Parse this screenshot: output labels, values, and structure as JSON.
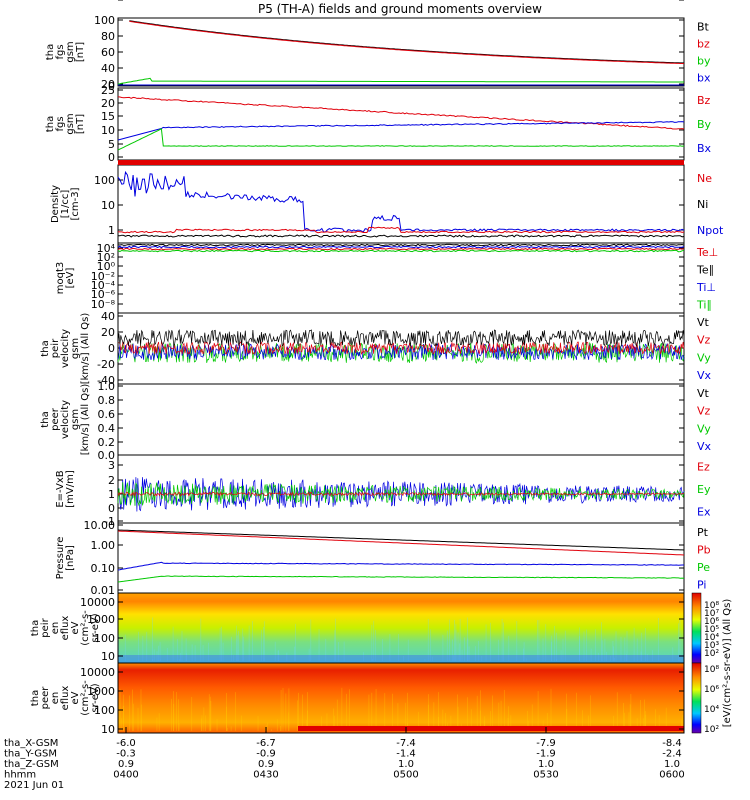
{
  "title": "P5 (TH-A) fields and ground moments overview",
  "colors": {
    "black": "#000000",
    "red": "#e0000b",
    "green": "#00c800",
    "blue": "#0000e0",
    "frame": "#000000"
  },
  "chart_data": [
    {
      "type": "line",
      "id": "fgs",
      "ylabel": [
        "tha",
        "fgs",
        "gsm",
        "[nT]"
      ],
      "yticks": [
        "100",
        "80",
        "60",
        "40",
        "20",
        "0"
      ],
      "ylim": [
        0,
        100
      ],
      "legend": [
        {
          "name": "Bt",
          "color": "black"
        },
        {
          "name": "bz",
          "color": "red"
        },
        {
          "name": "by",
          "color": "green"
        },
        {
          "name": "bx",
          "color": "blue"
        }
      ]
    },
    {
      "type": "line",
      "id": "fgs_dsl",
      "ylabel": [
        "tha",
        "fgs",
        "gsm",
        "[nT]"
      ],
      "yticks": [
        "25",
        "20",
        "15",
        "10",
        "5",
        "0",
        "-5"
      ],
      "ylim": [
        -8,
        25
      ],
      "legend": [
        {
          "name": "Bz",
          "color": "red"
        },
        {
          "name": "By",
          "color": "green"
        },
        {
          "name": "Bx",
          "color": "blue"
        }
      ]
    },
    {
      "type": "line",
      "id": "density",
      "ylabel": [
        "Density",
        "[1/cc]",
        "[cm-3]"
      ],
      "yticks": [
        "100",
        "10",
        "1"
      ],
      "ylim": [
        0.4,
        200
      ],
      "scale": "log",
      "legend": [
        {
          "name": "Ne",
          "color": "red"
        },
        {
          "name": "Ni",
          "color": "black"
        },
        {
          "name": "Npot",
          "color": "blue"
        }
      ]
    },
    {
      "type": "line",
      "id": "temp",
      "ylabel": [
        "moqt3",
        "[eV]"
      ],
      "yticks": [
        "10⁴",
        "10²",
        "10⁰",
        "10⁻²",
        "10⁻⁴",
        "10⁻⁶",
        "10⁻⁸"
      ],
      "ylim": [
        1e-09,
        10000.0
      ],
      "scale": "log",
      "legend": [
        {
          "name": "Te⊥",
          "color": "red"
        },
        {
          "name": "Te∥",
          "color": "black"
        },
        {
          "name": "Ti⊥",
          "color": "blue"
        },
        {
          "name": "Ti∥",
          "color": "green"
        }
      ]
    },
    {
      "type": "line",
      "id": "peir_v",
      "ylabel": [
        "tha",
        "peir",
        "velocity",
        "gsm",
        "[km/s] (All Qs)"
      ],
      "yticks": [
        "40",
        "20",
        "0",
        "-20",
        "-40"
      ],
      "ylim": [
        -40,
        40
      ],
      "legend": [
        {
          "name": "Vt",
          "color": "black"
        },
        {
          "name": "Vz",
          "color": "red"
        },
        {
          "name": "Vy",
          "color": "green"
        },
        {
          "name": "Vx",
          "color": "blue"
        }
      ]
    },
    {
      "type": "line",
      "id": "peer_v",
      "ylabel": [
        "tha",
        "peer",
        "velocity",
        "gsm",
        "[km/s] (All Qs)"
      ],
      "yticks": [
        "1.0",
        "0.8",
        "0.6",
        "0.4",
        "0.2",
        "0.0"
      ],
      "ylim": [
        0,
        1
      ],
      "legend": [
        {
          "name": "Vt",
          "color": "black"
        },
        {
          "name": "Vz",
          "color": "red"
        },
        {
          "name": "Vy",
          "color": "green"
        },
        {
          "name": "Vx",
          "color": "blue"
        }
      ]
    },
    {
      "type": "line",
      "id": "efield",
      "ylabel": [
        "E=-VxB",
        "[mV/m]"
      ],
      "yticks": [
        "3",
        "2",
        "1",
        "0",
        "-1",
        "-2"
      ],
      "ylim": [
        -2,
        3
      ],
      "legend": [
        {
          "name": "Ez",
          "color": "red"
        },
        {
          "name": "Ey",
          "color": "green"
        },
        {
          "name": "Ex",
          "color": "blue"
        }
      ]
    },
    {
      "type": "line",
      "id": "pressure",
      "ylabel": [
        "Pressure",
        "[nPa]"
      ],
      "yticks": [
        "10.00",
        "1.00",
        "0.10",
        "0.01"
      ],
      "ylim": [
        0.01,
        10
      ],
      "scale": "log",
      "legend": [
        {
          "name": "Pt",
          "color": "black"
        },
        {
          "name": "Pb",
          "color": "red"
        },
        {
          "name": "Pe",
          "color": "green"
        },
        {
          "name": "Pi",
          "color": "blue"
        }
      ]
    },
    {
      "type": "heatmap",
      "id": "peir_en",
      "ylabel": [
        "tha",
        "peir",
        "en",
        "eflux",
        "eV",
        "(cm²-s-",
        "sr-eV)"
      ],
      "yticks": [
        "10000",
        "1000",
        "100",
        "10"
      ],
      "ylim": [
        5,
        25000
      ],
      "scale": "log"
    },
    {
      "type": "heatmap",
      "id": "peer_en",
      "ylabel": [
        "tha",
        "peer",
        "en",
        "eflux",
        "eV",
        "(cm²-s-",
        "sr-eV)"
      ],
      "yticks": [
        "10000",
        "1000",
        "100",
        "10"
      ],
      "ylim": [
        5,
        25000
      ],
      "scale": "log"
    }
  ],
  "colorbar": {
    "label": "[eV/(cm²-s-sr-eV)] (All Qs)",
    "ticks": [
      "10⁸",
      "10⁷",
      "10⁶",
      "10⁵",
      "10⁴",
      "10³",
      "10²"
    ]
  },
  "colorbar2": {
    "ticks": [
      "10⁸",
      "10⁶",
      "10⁴",
      "10²"
    ]
  },
  "xaxis": {
    "labels": [
      "tha_X-GSM",
      "tha_Y-GSM",
      "tha_Z-GSM",
      "hhmm",
      "2021 Jun 01"
    ],
    "rows": [
      [
        "-6.0",
        "-6.7",
        "-7.4",
        "-7.9",
        "-8.4"
      ],
      [
        "-0.3",
        "-0.9",
        "-1.4",
        "-1.9",
        "-2.4"
      ],
      [
        "0.9",
        "0.9",
        "1.0",
        "1.0",
        "1.0"
      ],
      [
        "0400",
        "0430",
        "0500",
        "0530",
        "0600"
      ]
    ]
  }
}
